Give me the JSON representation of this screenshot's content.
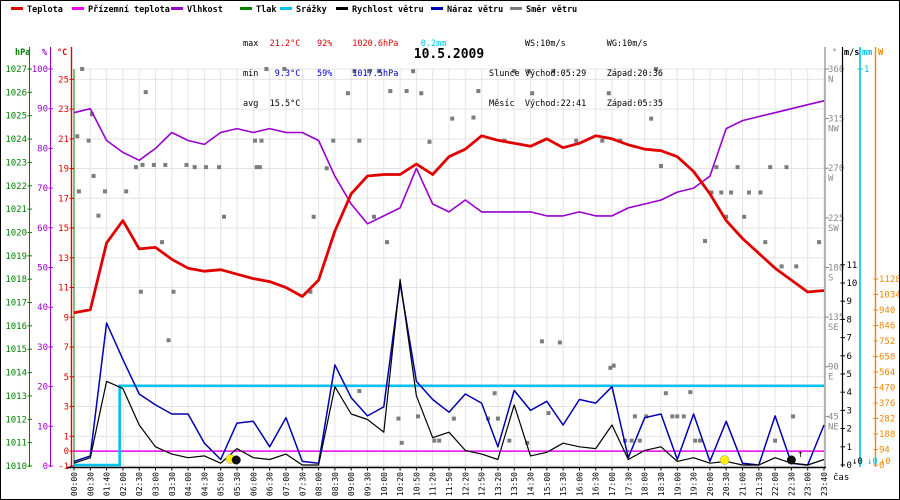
{
  "header": {
    "legend": [
      {
        "label": "Teplota",
        "color": "#e00000"
      },
      {
        "label": "Přízemní teplota",
        "color": "#ee00ee"
      },
      {
        "label": "Vlhkost",
        "color": "#9900cc"
      },
      {
        "label": "Tlak",
        "color": "#008000"
      },
      {
        "label": "Srážky",
        "color": "#00c0ee"
      },
      {
        "label": "Rychlost větru",
        "color": "#000000"
      },
      {
        "label": "Náraz větru",
        "color": "#0000b0"
      },
      {
        "label": "Směr větru",
        "color": "#7d7d7d"
      }
    ],
    "stats": {
      "max_label": "max",
      "max_temp": "21.2°C",
      "max_hum": "92%",
      "max_pres": "1020.6hPa",
      "max_precip": "0.2mm",
      "min_label": "min",
      "min_temp": "9.3°C",
      "min_hum": "59%",
      "min_pres": "1017.5hPa",
      "avg_label": "avg",
      "avg_temp": "15.5°C",
      "wind_line": "       WS:10m/s        WG:10m/s",
      "sun_line": "Slunce Východ:05:29    Západ:20:36",
      "moon_line": "Měsíc  Východ:22:41    Západ:05:35"
    },
    "units_left": {
      "pressure": "hPa",
      "sep1": "|",
      "humidity": "%",
      "sep2": "|",
      "temperature": "°C"
    },
    "units_right": {
      "direction": "°",
      "wind": "m/s",
      "precip": "mm",
      "radiation": "W"
    }
  },
  "colors": {
    "temperature": "#e00000",
    "ground_temperature": "#ee00ee",
    "humidity": "#9900cc",
    "pressure": "#008000",
    "precipitation": "#00c0ee",
    "wind_speed": "#000000",
    "wind_gust": "#0000b0",
    "wind_direction": "#7d7d7d",
    "radiation": "#ee8800",
    "direction_axis": "#8a8a8a",
    "grid": "#e4e4e4",
    "max_row": "#dd0000",
    "min_row": "#0000cc",
    "sun_marker": "#ffee00",
    "moon_marker": "#111111"
  },
  "chart_data": {
    "type": "line",
    "title": "10.5.2009",
    "xlabel": "čas",
    "x_labels": [
      "00:00",
      "00:30",
      "01:40",
      "02:00",
      "02:30",
      "03:00",
      "03:30",
      "04:00",
      "04:30",
      "05:00",
      "05:30",
      "06:00",
      "06:30",
      "07:00",
      "07:30",
      "08:00",
      "08:30",
      "09:00",
      "09:30",
      "10:00",
      "10:20",
      "10:50",
      "11:20",
      "11:50",
      "12:20",
      "12:50",
      "13:20",
      "13:50",
      "14:30",
      "15:00",
      "15:30",
      "16:00",
      "16:30",
      "17:00",
      "17:30",
      "18:00",
      "18:30",
      "19:00",
      "19:30",
      "20:00",
      "20:30",
      "21:00",
      "21:30",
      "22:00",
      "22:30",
      "23:00",
      "23:40"
    ],
    "axes": {
      "pressure": {
        "unit": "hPa",
        "min": 1010,
        "max": 1027,
        "step": 1
      },
      "humidity": {
        "unit": "%",
        "min": 0,
        "max": 100,
        "step": 10
      },
      "temperature": {
        "unit": "°C",
        "ticks": [
          -1,
          0,
          1,
          3,
          5,
          7,
          9,
          11,
          13,
          15,
          17,
          19,
          21,
          23,
          25
        ]
      },
      "direction": {
        "unit": "°",
        "ticks": [
          {
            "deg": 360,
            "label": "N"
          },
          {
            "deg": 315,
            "label": "NW"
          },
          {
            "deg": 270,
            "label": "W"
          },
          {
            "deg": 225,
            "label": "SW"
          },
          {
            "deg": 180,
            "label": "S"
          },
          {
            "deg": 135,
            "label": "SE"
          },
          {
            "deg": 90,
            "label": "E"
          },
          {
            "deg": 45,
            "label": "NE"
          }
        ]
      },
      "wind": {
        "unit": "m/s",
        "min": 0,
        "max": 11,
        "step": 1
      },
      "precip": {
        "unit": "mm",
        "min": 0,
        "max": 1
      },
      "radiation": {
        "unit": "W",
        "min": 0,
        "max": 1128,
        "step": 94
      }
    },
    "series": {
      "temperature_c": [
        9.3,
        9.5,
        14.0,
        15.5,
        13.6,
        13.7,
        12.9,
        12.3,
        12.1,
        12.2,
        11.9,
        11.6,
        11.4,
        11.0,
        10.4,
        11.5,
        14.8,
        17.3,
        18.5,
        18.6,
        18.6,
        19.3,
        18.6,
        19.8,
        20.3,
        21.2,
        20.9,
        20.7,
        20.5,
        21.0,
        20.4,
        20.7,
        21.2,
        21.0,
        20.6,
        20.3,
        20.2,
        19.8,
        18.8,
        17.3,
        15.5,
        14.3,
        13.3,
        12.3,
        11.5,
        10.7,
        10.8
      ],
      "humidity_pct": [
        89,
        90,
        82,
        79,
        77,
        80,
        84,
        82,
        81,
        84,
        85,
        84,
        85,
        84,
        84,
        82,
        73,
        66,
        61,
        63,
        65,
        75,
        66,
        64,
        67,
        64,
        64,
        64,
        64,
        63,
        63,
        64,
        63,
        63,
        65,
        66,
        67,
        69,
        70,
        73,
        85,
        87,
        88,
        89,
        90,
        91,
        92
      ],
      "ground_temperature_c": {
        "constant": 0
      },
      "precipitation_mm": {
        "step_index": 2.8,
        "before": 0,
        "after": 0.2
      },
      "wind_speed_ms": [
        0.1,
        0.4,
        4.6,
        4.2,
        2.2,
        1.0,
        0.6,
        0.4,
        0.5,
        0.1,
        0.9,
        0.4,
        0.3,
        0.6,
        0.0,
        0.0,
        4.3,
        2.8,
        2.5,
        1.8,
        10.2,
        3.8,
        1.5,
        1.8,
        0.8,
        0.6,
        0.3,
        3.3,
        0.5,
        0.7,
        1.2,
        1.0,
        0.9,
        2.2,
        0.3,
        0.8,
        1.0,
        0.2,
        0.4,
        0.1,
        0.2,
        0.0,
        0.0,
        0.4,
        0.1,
        0.0,
        0.3
      ],
      "wind_gust_ms": [
        0.2,
        0.5,
        7.8,
        5.8,
        3.9,
        3.3,
        2.8,
        2.8,
        1.2,
        0.3,
        2.3,
        2.4,
        1.0,
        2.6,
        0.2,
        0.1,
        5.5,
        3.7,
        2.7,
        3.2,
        10.0,
        4.6,
        3.6,
        2.9,
        3.9,
        3.4,
        1.0,
        4.1,
        3.0,
        3.5,
        2.2,
        3.6,
        3.4,
        4.3,
        0.4,
        2.6,
        2.8,
        0.3,
        2.8,
        0.2,
        2.4,
        0.1,
        0.0,
        2.7,
        0.1,
        0.0,
        2.2
      ],
      "wind_direction_deg": [
        [
          0.2,
          299
        ],
        [
          0.3,
          249
        ],
        [
          0.5,
          360
        ],
        [
          0.9,
          295
        ],
        [
          1.1,
          319
        ],
        [
          1.2,
          263
        ],
        [
          1.5,
          227
        ],
        [
          1.9,
          249
        ],
        [
          3.2,
          249
        ],
        [
          3.8,
          271
        ],
        [
          4.1,
          158
        ],
        [
          4.2,
          273
        ],
        [
          4.4,
          339
        ],
        [
          4.9,
          273
        ],
        [
          5.4,
          203
        ],
        [
          5.6,
          273
        ],
        [
          5.8,
          114
        ],
        [
          6.1,
          158
        ],
        [
          6.9,
          273
        ],
        [
          7.4,
          271
        ],
        [
          8.1,
          271
        ],
        [
          8.9,
          271
        ],
        [
          9.2,
          226
        ],
        [
          11.1,
          295
        ],
        [
          11.2,
          271
        ],
        [
          11.4,
          271
        ],
        [
          11.5,
          295
        ],
        [
          11.8,
          360
        ],
        [
          12.9,
          360
        ],
        [
          14.5,
          158
        ],
        [
          14.7,
          226
        ],
        [
          15.5,
          270
        ],
        [
          15.9,
          295
        ],
        [
          16.8,
          338
        ],
        [
          17.2,
          358
        ],
        [
          17.5,
          295
        ],
        [
          17.5,
          68
        ],
        [
          18.1,
          358
        ],
        [
          18.4,
          226
        ],
        [
          18.7,
          358
        ],
        [
          19.2,
          203
        ],
        [
          19.4,
          340
        ],
        [
          19.9,
          43
        ],
        [
          20.1,
          21
        ],
        [
          20.4,
          340
        ],
        [
          20.8,
          358
        ],
        [
          21.1,
          45
        ],
        [
          21.3,
          338
        ],
        [
          21.8,
          294
        ],
        [
          22.1,
          23
        ],
        [
          22.4,
          23
        ],
        [
          23.2,
          315
        ],
        [
          23.3,
          43
        ],
        [
          24.5,
          316
        ],
        [
          24.8,
          340
        ],
        [
          25.4,
          43
        ],
        [
          25.8,
          66
        ],
        [
          26.0,
          43
        ],
        [
          26.4,
          295
        ],
        [
          26.7,
          23
        ],
        [
          27.0,
          358
        ],
        [
          27.8,
          21
        ],
        [
          27.9,
          358
        ],
        [
          28.1,
          338
        ],
        [
          28.7,
          113
        ],
        [
          29.1,
          48
        ],
        [
          29.4,
          358
        ],
        [
          29.8,
          112
        ],
        [
          30.8,
          295
        ],
        [
          32.4,
          295
        ],
        [
          32.8,
          338
        ],
        [
          32.9,
          89
        ],
        [
          33.1,
          91
        ],
        [
          33.5,
          295
        ],
        [
          33.8,
          23
        ],
        [
          34.2,
          23
        ],
        [
          34.4,
          45
        ],
        [
          34.7,
          23
        ],
        [
          35.1,
          45
        ],
        [
          35.4,
          315
        ],
        [
          35.7,
          360
        ],
        [
          36.0,
          272
        ],
        [
          36.3,
          66
        ],
        [
          36.7,
          45
        ],
        [
          37.0,
          45
        ],
        [
          37.4,
          45
        ],
        [
          37.8,
          67
        ],
        [
          38.1,
          23
        ],
        [
          38.4,
          23
        ],
        [
          38.7,
          204
        ],
        [
          39.1,
          248
        ],
        [
          39.4,
          271
        ],
        [
          39.7,
          248
        ],
        [
          40.0,
          226
        ],
        [
          40.3,
          248
        ],
        [
          40.7,
          271
        ],
        [
          41.1,
          226
        ],
        [
          41.4,
          248
        ],
        [
          42.1,
          248
        ],
        [
          42.4,
          203
        ],
        [
          42.7,
          271
        ],
        [
          43.0,
          23
        ],
        [
          43.4,
          181
        ],
        [
          43.7,
          271
        ],
        [
          44.1,
          45
        ],
        [
          44.3,
          181
        ],
        [
          45.7,
          203
        ]
      ]
    },
    "markers": {
      "sunrise": {
        "time": "05:29",
        "x": 9.6
      },
      "moonset": {
        "time": "05:35",
        "x": 9.95
      },
      "sunset": {
        "time": "20:36",
        "x": 39.9
      },
      "moonrise": {
        "time": "22:41",
        "x": 44.0
      }
    },
    "bottom_indicators": [
      "↓0",
      "↓0",
      "↓0"
    ]
  }
}
